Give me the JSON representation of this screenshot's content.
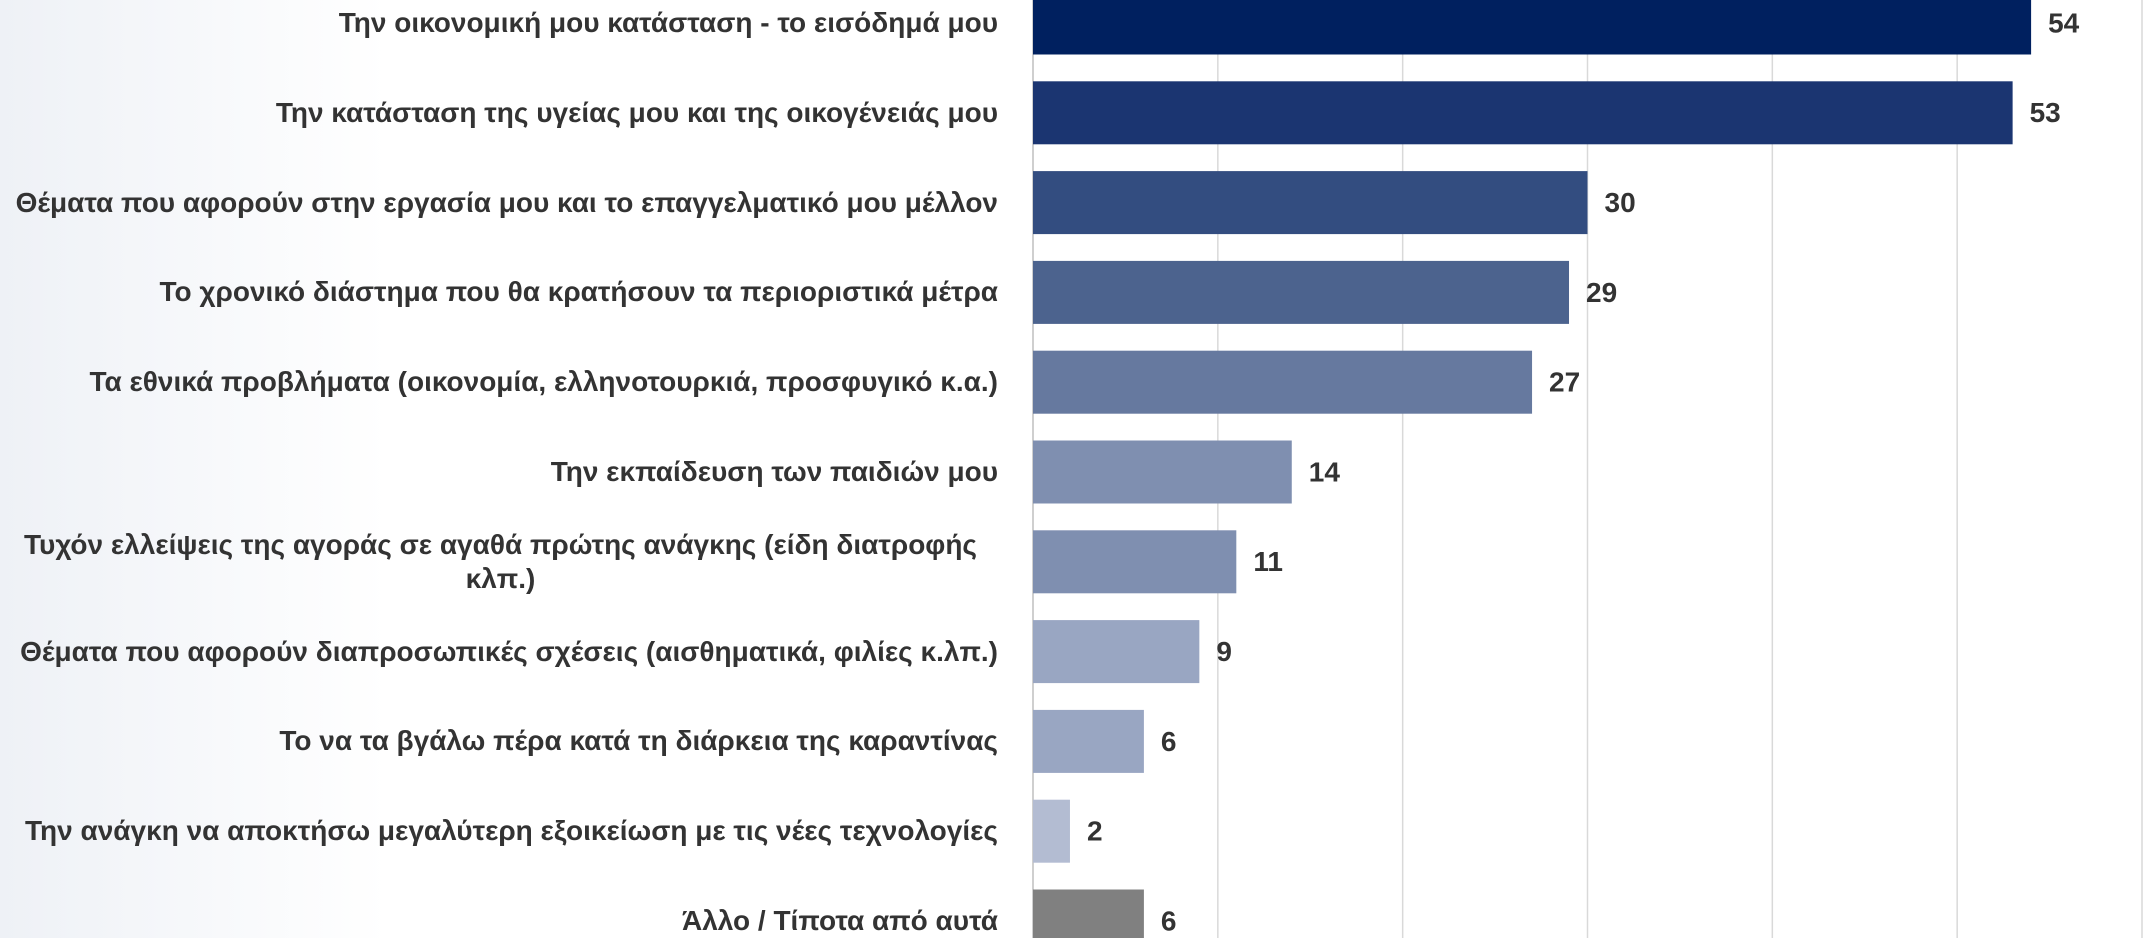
{
  "chart_data": {
    "type": "barh",
    "categories": [
      "Την οικονομική μου κατάσταση - το εισόδημά μου",
      "Την κατάσταση της υγείας μου και της οικογένειάς μου",
      "Θέματα που αφορούν στην εργασία μου και το επαγγελματικό μου μέλλον",
      "Το χρονικό διάστημα που θα κρατήσουν τα περιοριστικά μέτρα",
      "Τα εθνικά προβλήματα (οικονομία, ελληνοτουρκιά, προσφυγικό κ.α.)",
      "Την εκπαίδευση των παιδιών μου",
      "Τυχόν ελλείψεις της αγοράς σε αγαθά πρώτης ανάγκης (είδη διατροφής κλπ.)",
      "Θέματα που αφορούν διαπροσωπικές σχέσεις (αισθηματικά, φιλίες κ.λπ.)",
      "Το να τα βγάλω πέρα κατά τη διάρκεια της καραντίνας",
      "Την ανάγκη να αποκτήσω μεγαλύτερη εξοικείωση με τις νέες τεχνολογίες",
      "Άλλο / Τίποτα από αυτά"
    ],
    "values": [
      54,
      53,
      30,
      29,
      27,
      14,
      11,
      9,
      6,
      2,
      6
    ],
    "colors": [
      "#00205f",
      "#1b3571",
      "#334d80",
      "#4c638e",
      "#66799f",
      "#7f8fb0",
      "#7f8fb0",
      "#99a6c2",
      "#99a6c2",
      "#b3bcd2",
      "#808080"
    ],
    "xlim": [
      0,
      60
    ],
    "xticks": [
      0,
      10,
      20,
      30,
      40,
      50,
      60
    ],
    "grid": true
  }
}
